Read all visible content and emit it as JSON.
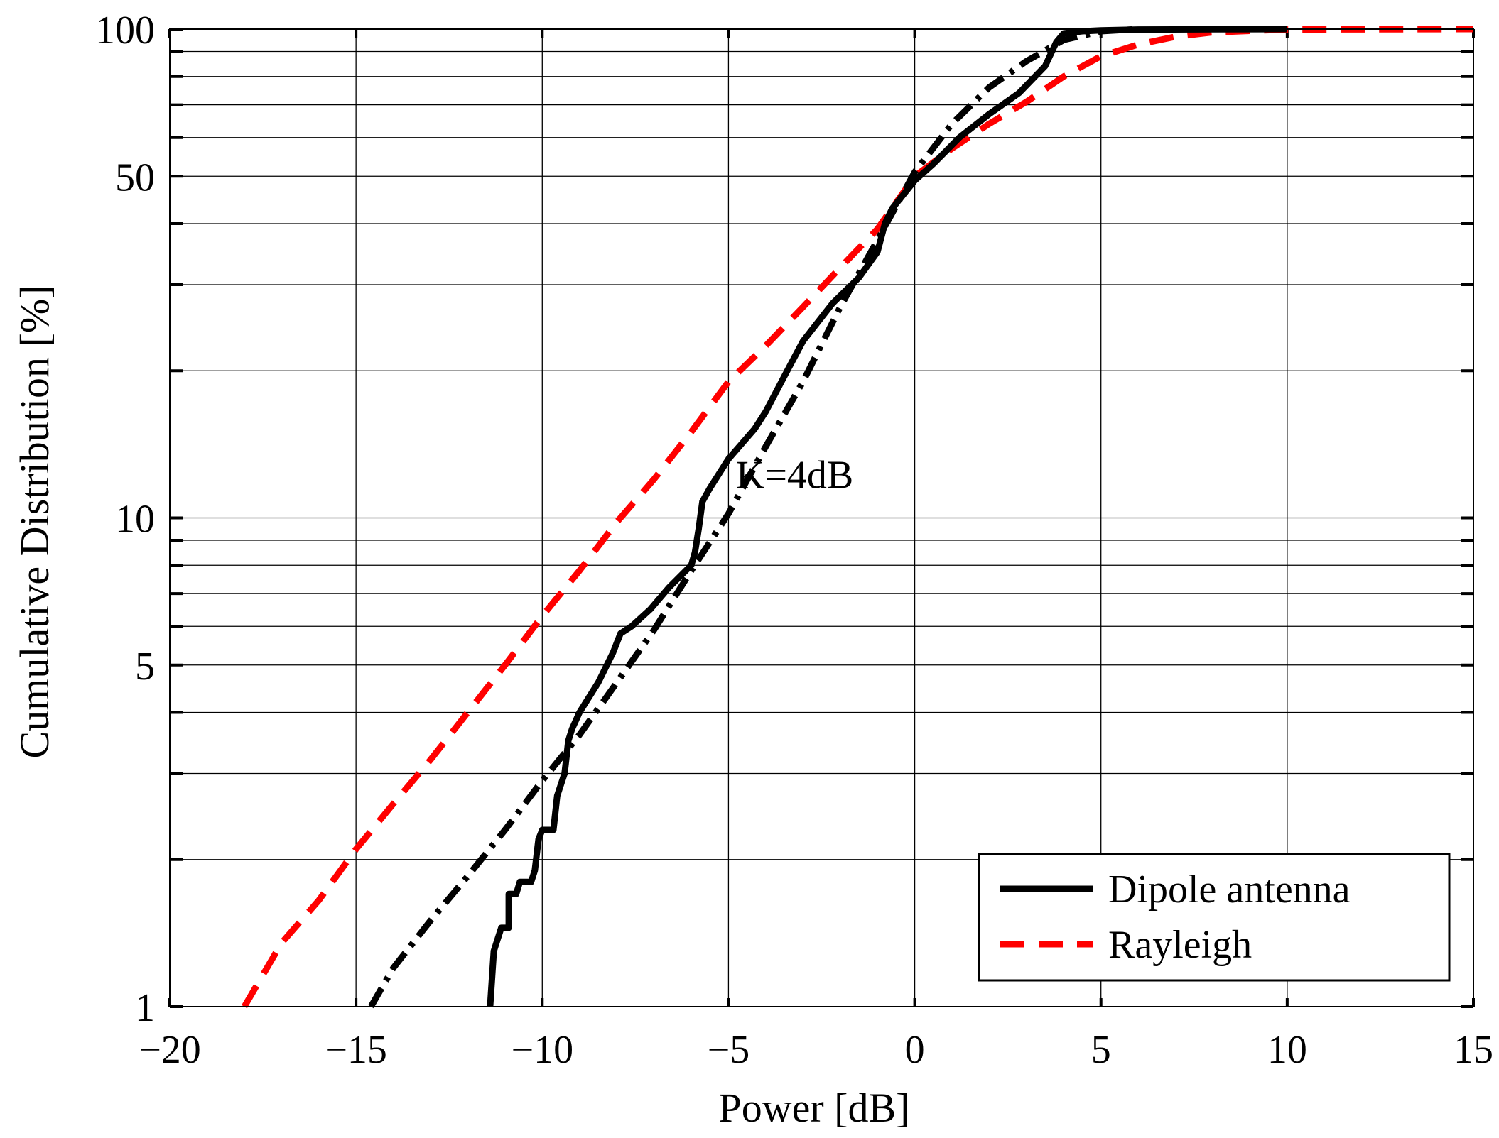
{
  "chart_data": {
    "type": "line",
    "xlabel": "Power [dB]",
    "ylabel": "Cumulative Distribution [%]",
    "xlim": [
      -20,
      15
    ],
    "ylim": [
      1,
      100
    ],
    "yscale": "log",
    "grid": true,
    "x_ticks": [
      -20,
      -15,
      -10,
      -5,
      0,
      5,
      10,
      15
    ],
    "x_tick_labels": [
      "−20",
      "−15",
      "−10",
      "−5",
      "0",
      "5",
      "10",
      "15"
    ],
    "y_ticks": [
      1,
      5,
      10,
      50,
      100
    ],
    "y_tick_labels": [
      "1",
      "5",
      "10",
      "50",
      "100"
    ],
    "y_minor_ticks": [
      2,
      3,
      4,
      6,
      7,
      8,
      9,
      20,
      30,
      40,
      60,
      70,
      80,
      90
    ],
    "legend_position": "bottom-right",
    "annotation": {
      "text": "K=4dB",
      "x": -4.8,
      "y": 11.5
    },
    "series": [
      {
        "name": "Dipole antenna",
        "style": "solid",
        "color": "#000000",
        "points": [
          [
            -11.4,
            1.0
          ],
          [
            -11.3,
            1.3
          ],
          [
            -11.1,
            1.45
          ],
          [
            -10.9,
            1.45
          ],
          [
            -10.9,
            1.7
          ],
          [
            -10.7,
            1.7
          ],
          [
            -10.6,
            1.8
          ],
          [
            -10.3,
            1.8
          ],
          [
            -10.2,
            1.9
          ],
          [
            -10.1,
            2.2
          ],
          [
            -10.0,
            2.3
          ],
          [
            -9.7,
            2.3
          ],
          [
            -9.6,
            2.7
          ],
          [
            -9.4,
            3.0
          ],
          [
            -9.3,
            3.5
          ],
          [
            -9.2,
            3.7
          ],
          [
            -9.0,
            4.0
          ],
          [
            -8.5,
            4.6
          ],
          [
            -8.1,
            5.3
          ],
          [
            -7.9,
            5.8
          ],
          [
            -7.6,
            6.0
          ],
          [
            -7.1,
            6.5
          ],
          [
            -6.6,
            7.2
          ],
          [
            -6.0,
            8.0
          ],
          [
            -5.9,
            8.5
          ],
          [
            -5.8,
            9.5
          ],
          [
            -5.7,
            10.8
          ],
          [
            -5.5,
            11.5
          ],
          [
            -5.0,
            13.2
          ],
          [
            -4.3,
            15.2
          ],
          [
            -4.0,
            16.5
          ],
          [
            -3.5,
            19.5
          ],
          [
            -3.0,
            23.0
          ],
          [
            -2.2,
            27.5
          ],
          [
            -1.5,
            31.0
          ],
          [
            -1.0,
            35.0
          ],
          [
            -0.8,
            40.0
          ],
          [
            -0.6,
            43.0
          ],
          [
            0.0,
            49.0
          ],
          [
            0.5,
            53.0
          ],
          [
            1.2,
            60.0
          ],
          [
            2.0,
            67.0
          ],
          [
            2.8,
            74.0
          ],
          [
            3.5,
            84.0
          ],
          [
            3.8,
            94.0
          ],
          [
            4.0,
            98.0
          ],
          [
            4.5,
            99.0
          ],
          [
            5.0,
            99.4
          ],
          [
            6.0,
            99.8
          ],
          [
            8.0,
            99.9
          ],
          [
            10.0,
            100.0
          ]
        ]
      },
      {
        "name": "Rayleigh",
        "style": "dashed",
        "color": "#ff0000",
        "points": [
          [
            -18.0,
            1.0
          ],
          [
            -17.0,
            1.35
          ],
          [
            -16.0,
            1.65
          ],
          [
            -15.0,
            2.1
          ],
          [
            -14.0,
            2.6
          ],
          [
            -13.0,
            3.2
          ],
          [
            -12.0,
            4.0
          ],
          [
            -11.0,
            5.0
          ],
          [
            -10.0,
            6.3
          ],
          [
            -9.0,
            7.8
          ],
          [
            -8.0,
            9.8
          ],
          [
            -7.0,
            12.0
          ],
          [
            -6.0,
            15.0
          ],
          [
            -5.0,
            19.0
          ],
          [
            -4.0,
            22.5
          ],
          [
            -3.0,
            27.0
          ],
          [
            -2.0,
            32.5
          ],
          [
            -1.0,
            39.0
          ],
          [
            0.0,
            50.0
          ],
          [
            1.0,
            57.0
          ],
          [
            2.0,
            64.0
          ],
          [
            3.0,
            71.0
          ],
          [
            4.0,
            80.0
          ],
          [
            5.0,
            88.0
          ],
          [
            6.0,
            93.0
          ],
          [
            7.0,
            96.5
          ],
          [
            8.0,
            98.5
          ],
          [
            10.0,
            99.8
          ],
          [
            15.0,
            100.0
          ]
        ]
      },
      {
        "name": "",
        "style": "dashdot",
        "color": "#000000",
        "points": [
          [
            -14.6,
            1.0
          ],
          [
            -14.0,
            1.2
          ],
          [
            -13.0,
            1.5
          ],
          [
            -12.0,
            1.85
          ],
          [
            -11.0,
            2.3
          ],
          [
            -10.0,
            2.9
          ],
          [
            -9.0,
            3.6
          ],
          [
            -8.0,
            4.6
          ],
          [
            -7.0,
            5.9
          ],
          [
            -6.0,
            7.8
          ],
          [
            -5.0,
            10.2
          ],
          [
            -4.0,
            14.0
          ],
          [
            -3.0,
            19.0
          ],
          [
            -2.0,
            27.0
          ],
          [
            -1.0,
            37.0
          ],
          [
            0.0,
            51.0
          ],
          [
            1.0,
            64.0
          ],
          [
            2.0,
            76.0
          ],
          [
            3.0,
            86.0
          ],
          [
            4.0,
            95.0
          ],
          [
            5.0,
            99.0
          ],
          [
            6.0,
            100.0
          ]
        ]
      }
    ]
  }
}
